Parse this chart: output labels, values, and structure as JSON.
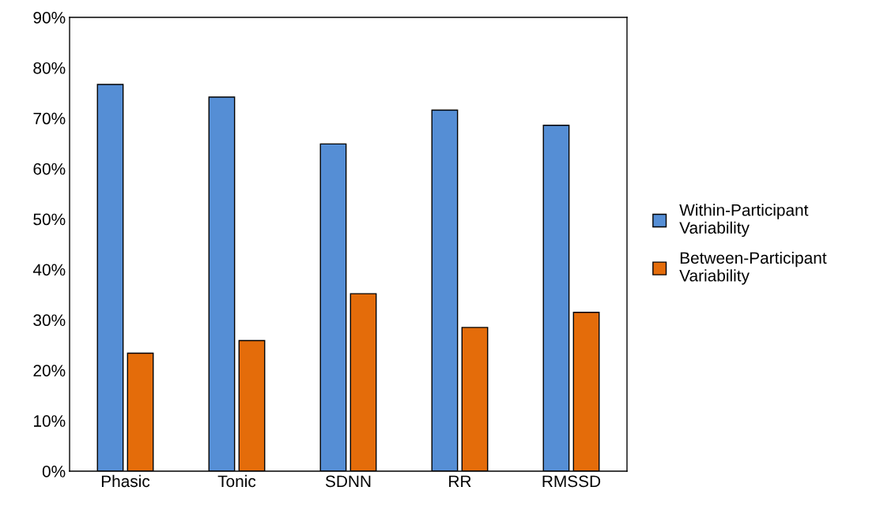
{
  "chart_data": {
    "type": "bar",
    "categories": [
      "Phasic",
      "Tonic",
      "SDNN",
      "RR",
      "RMSSD"
    ],
    "series": [
      {
        "name": "Within-Participant Variability",
        "color": "#558ed5",
        "values": [
          76.7,
          74.2,
          64.9,
          71.6,
          68.6
        ]
      },
      {
        "name": "Between-Participant Variability",
        "color": "#e46c0a",
        "values": [
          23.4,
          25.9,
          35.2,
          28.5,
          31.5
        ]
      }
    ],
    "ylim": [
      0,
      90
    ],
    "yticks": [
      {
        "value": 0,
        "label": "0%"
      },
      {
        "value": 10,
        "label": "10%"
      },
      {
        "value": 20,
        "label": "20%"
      },
      {
        "value": 30,
        "label": "30%"
      },
      {
        "value": 40,
        "label": "40%"
      },
      {
        "value": 50,
        "label": "50%"
      },
      {
        "value": 60,
        "label": "60%"
      },
      {
        "value": 70,
        "label": "70%"
      },
      {
        "value": 80,
        "label": "80%"
      },
      {
        "value": 90,
        "label": "90%"
      }
    ],
    "grid": false,
    "legend": "right"
  }
}
